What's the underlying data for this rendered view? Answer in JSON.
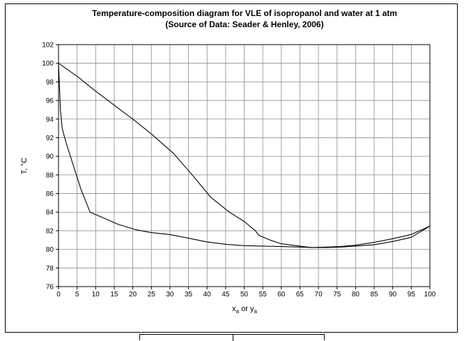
{
  "chart_data": {
    "type": "line",
    "title": "Temperature-composition diagram for VLE of isopropanol and water  at 1 atm",
    "subtitle": "(Source of Data: Seader & Henley, 2006)",
    "xlabel_main": "x",
    "xlabel_sub1": "a",
    "xlabel_mid": " or y",
    "xlabel_sub2": "a",
    "ylabel": "T, °C",
    "xlim": [
      0,
      100
    ],
    "ylim": [
      76,
      102
    ],
    "x_ticks": [
      0,
      5,
      10,
      15,
      20,
      25,
      30,
      35,
      40,
      45,
      50,
      55,
      60,
      65,
      70,
      75,
      80,
      85,
      90,
      95,
      100
    ],
    "y_ticks": [
      76,
      78,
      80,
      82,
      84,
      86,
      88,
      90,
      92,
      94,
      96,
      98,
      100,
      102
    ],
    "grid": true,
    "series": [
      {
        "values": [
          [
            0,
            100
          ],
          [
            0.5,
            95
          ],
          [
            1,
            93
          ],
          [
            2,
            91.5
          ],
          [
            4,
            89
          ],
          [
            6,
            86.5
          ],
          [
            8.5,
            84
          ],
          [
            12,
            83.4
          ],
          [
            16,
            82.7
          ],
          [
            21,
            82.1
          ],
          [
            25,
            81.8
          ],
          [
            30,
            81.6
          ],
          [
            35,
            81.2
          ],
          [
            40,
            80.8
          ],
          [
            45,
            80.55
          ],
          [
            50,
            80.4
          ],
          [
            55,
            80.35
          ],
          [
            60,
            80.3
          ],
          [
            65,
            80.25
          ],
          [
            68.5,
            80.2
          ],
          [
            72,
            80.25
          ],
          [
            76,
            80.3
          ],
          [
            80,
            80.45
          ],
          [
            85,
            80.75
          ],
          [
            90,
            81.15
          ],
          [
            95,
            81.6
          ],
          [
            100,
            82.5
          ]
        ]
      },
      {
        "values": [
          [
            0,
            100
          ],
          [
            5,
            98.6
          ],
          [
            10,
            97
          ],
          [
            15,
            95.5
          ],
          [
            20,
            94
          ],
          [
            25,
            92.4
          ],
          [
            31,
            90.3
          ],
          [
            36,
            88
          ],
          [
            41,
            85.6
          ],
          [
            46,
            84
          ],
          [
            50,
            83
          ],
          [
            53,
            82
          ],
          [
            54,
            81.5
          ],
          [
            57,
            81
          ],
          [
            60,
            80.6
          ],
          [
            64,
            80.4
          ],
          [
            68,
            80.2
          ],
          [
            72,
            80.2
          ],
          [
            76,
            80.25
          ],
          [
            80,
            80.35
          ],
          [
            85,
            80.5
          ],
          [
            90,
            80.85
          ],
          [
            95,
            81.3
          ],
          [
            100,
            82.5
          ]
        ]
      }
    ]
  }
}
